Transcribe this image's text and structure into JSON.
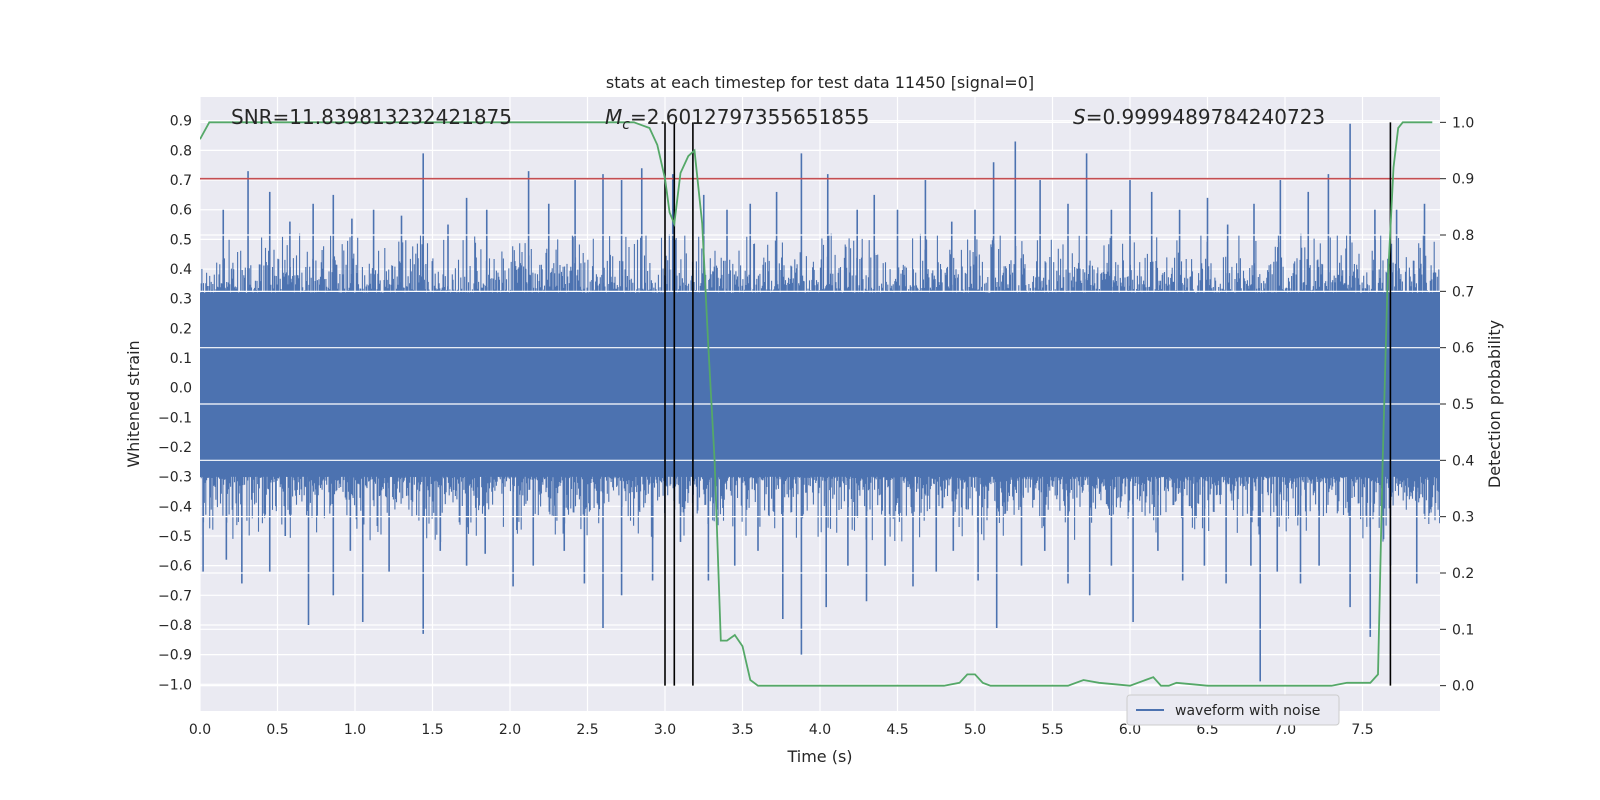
{
  "chart_data": {
    "type": "line",
    "title": "stats at each timestep for test data 11450 [signal=0]",
    "xlabel": "Time (s)",
    "ylabel_left": "Whitened strain",
    "ylabel_right": "Detection probability",
    "xlim": [
      0.0,
      8.0
    ],
    "ylim_left": [
      -1.09,
      0.98
    ],
    "ylim_right": [
      -0.045,
      1.045
    ],
    "x_ticks": [
      "0.0",
      "0.5",
      "1.0",
      "1.5",
      "2.0",
      "2.5",
      "3.0",
      "3.5",
      "4.0",
      "4.5",
      "5.0",
      "5.5",
      "6.0",
      "6.5",
      "7.0",
      "7.5"
    ],
    "y_left_ticks": [
      "0.9",
      "0.8",
      "0.7",
      "0.6",
      "0.5",
      "0.4",
      "0.3",
      "0.2",
      "0.1",
      "0.0",
      "−0.1",
      "−0.2",
      "−0.3",
      "−0.4",
      "−0.5",
      "−0.6",
      "−0.7",
      "−0.8",
      "−0.9",
      "−1.0"
    ],
    "y_right_ticks": [
      "1.0",
      "0.9",
      "0.8",
      "0.7",
      "0.6",
      "0.5",
      "0.4",
      "0.3",
      "0.2",
      "0.1",
      "0.0"
    ],
    "grid": true,
    "legend": {
      "position": "lower-right",
      "entries": [
        {
          "label": "waveform with noise",
          "color": "#4c72b0"
        }
      ]
    },
    "annotations": {
      "snr": "SNR=11.839813232421875",
      "mc_symbol": "M",
      "mc_sub": "c",
      "mc_value": "=2.6012797355651855",
      "s_symbol": "S",
      "s_value": "=0.9999489784240723"
    },
    "threshold": {
      "axis": "right",
      "value": 0.9,
      "color": "#c44e52"
    },
    "vertical_lines": [
      3.0,
      3.06,
      3.18,
      7.68
    ],
    "waveform": {
      "color": "#4c72b0",
      "body_envelope": [
        -0.3,
        0.32
      ],
      "peaks_up": [
        [
          0.15,
          0.6
        ],
        [
          0.31,
          0.73
        ],
        [
          0.45,
          0.66
        ],
        [
          0.58,
          0.56
        ],
        [
          0.73,
          0.62
        ],
        [
          0.86,
          0.65
        ],
        [
          0.98,
          0.57
        ],
        [
          1.12,
          0.6
        ],
        [
          1.3,
          0.58
        ],
        [
          1.44,
          0.79
        ],
        [
          1.6,
          0.55
        ],
        [
          1.72,
          0.64
        ],
        [
          1.85,
          0.6
        ],
        [
          2.12,
          0.73
        ],
        [
          2.25,
          0.62
        ],
        [
          2.42,
          0.7
        ],
        [
          2.6,
          0.72
        ],
        [
          2.72,
          0.7
        ],
        [
          2.85,
          0.74
        ],
        [
          3.05,
          0.72
        ],
        [
          3.25,
          0.65
        ],
        [
          3.4,
          0.6
        ],
        [
          3.55,
          0.62
        ],
        [
          3.72,
          0.66
        ],
        [
          3.88,
          0.79
        ],
        [
          4.05,
          0.72
        ],
        [
          4.24,
          0.6
        ],
        [
          4.35,
          0.65
        ],
        [
          4.5,
          0.6
        ],
        [
          4.68,
          0.7
        ],
        [
          4.85,
          0.56
        ],
        [
          5.0,
          0.6
        ],
        [
          5.12,
          0.76
        ],
        [
          5.26,
          0.83
        ],
        [
          5.42,
          0.7
        ],
        [
          5.6,
          0.62
        ],
        [
          5.72,
          0.79
        ],
        [
          5.88,
          0.6
        ],
        [
          6.0,
          0.7
        ],
        [
          6.14,
          0.66
        ],
        [
          6.32,
          0.6
        ],
        [
          6.5,
          0.64
        ],
        [
          6.63,
          0.55
        ],
        [
          6.8,
          0.62
        ],
        [
          6.97,
          0.7
        ],
        [
          7.15,
          0.66
        ],
        [
          7.28,
          0.72
        ],
        [
          7.42,
          0.89
        ],
        [
          7.58,
          0.6
        ],
        [
          7.72,
          0.6
        ],
        [
          7.9,
          0.62
        ]
      ],
      "peaks_down": [
        [
          0.02,
          -0.62
        ],
        [
          0.17,
          -0.58
        ],
        [
          0.27,
          -0.66
        ],
        [
          0.45,
          -0.62
        ],
        [
          0.55,
          -0.5
        ],
        [
          0.7,
          -0.8
        ],
        [
          0.86,
          -0.7
        ],
        [
          0.97,
          -0.55
        ],
        [
          1.05,
          -0.79
        ],
        [
          1.22,
          -0.62
        ],
        [
          1.44,
          -0.83
        ],
        [
          1.55,
          -0.55
        ],
        [
          1.72,
          -0.6
        ],
        [
          1.84,
          -0.56
        ],
        [
          2.02,
          -0.67
        ],
        [
          2.15,
          -0.6
        ],
        [
          2.35,
          -0.55
        ],
        [
          2.48,
          -0.66
        ],
        [
          2.6,
          -0.81
        ],
        [
          2.72,
          -0.7
        ],
        [
          2.92,
          -0.65
        ],
        [
          3.1,
          -0.52
        ],
        [
          3.28,
          -0.65
        ],
        [
          3.45,
          -0.6
        ],
        [
          3.6,
          -0.55
        ],
        [
          3.76,
          -0.78
        ],
        [
          3.88,
          -0.9
        ],
        [
          4.04,
          -0.74
        ],
        [
          4.18,
          -0.6
        ],
        [
          4.3,
          -0.72
        ],
        [
          4.42,
          -0.6
        ],
        [
          4.6,
          -0.67
        ],
        [
          4.75,
          -0.62
        ],
        [
          4.86,
          -0.55
        ],
        [
          5.02,
          -0.65
        ],
        [
          5.14,
          -0.81
        ],
        [
          5.3,
          -0.6
        ],
        [
          5.45,
          -0.55
        ],
        [
          5.6,
          -0.66
        ],
        [
          5.74,
          -0.7
        ],
        [
          5.88,
          -0.6
        ],
        [
          6.02,
          -0.79
        ],
        [
          6.18,
          -0.55
        ],
        [
          6.34,
          -0.65
        ],
        [
          6.48,
          -0.6
        ],
        [
          6.62,
          -0.66
        ],
        [
          6.78,
          -0.6
        ],
        [
          6.84,
          -0.99
        ],
        [
          6.95,
          -0.62
        ],
        [
          7.1,
          -0.66
        ],
        [
          7.22,
          -0.6
        ],
        [
          7.42,
          -0.74
        ],
        [
          7.55,
          -0.84
        ],
        [
          7.68,
          -0.6
        ],
        [
          7.85,
          -0.66
        ]
      ]
    },
    "series": [
      {
        "color": "#55a868",
        "axis": "right",
        "x": [
          0.0,
          0.06,
          0.2,
          0.5,
          1.0,
          1.5,
          2.0,
          2.5,
          2.7,
          2.8,
          2.85,
          2.9,
          2.95,
          3.0,
          3.03,
          3.06,
          3.1,
          3.15,
          3.19,
          3.24,
          3.28,
          3.32,
          3.36,
          3.4,
          3.45,
          3.5,
          3.55,
          3.6,
          3.7,
          3.8,
          4.0,
          4.2,
          4.5,
          4.7,
          4.8,
          4.9,
          4.95,
          5.0,
          5.05,
          5.1,
          5.3,
          5.5,
          5.6,
          5.7,
          5.8,
          6.0,
          6.1,
          6.15,
          6.2,
          6.25,
          6.3,
          6.5,
          6.8,
          7.0,
          7.2,
          7.3,
          7.4,
          7.5,
          7.55,
          7.6,
          7.63,
          7.66,
          7.7,
          7.73,
          7.76,
          7.8,
          7.85,
          7.95
        ],
        "y": [
          0.97,
          1.0,
          1.0,
          1.0,
          1.0,
          1.0,
          1.0,
          1.0,
          1.0,
          1.0,
          0.995,
          0.99,
          0.96,
          0.9,
          0.84,
          0.82,
          0.91,
          0.94,
          0.95,
          0.82,
          0.6,
          0.4,
          0.08,
          0.08,
          0.09,
          0.07,
          0.01,
          0.0,
          0.0,
          0.0,
          0.0,
          0.0,
          0.0,
          0.0,
          0.0,
          0.005,
          0.02,
          0.02,
          0.005,
          0.0,
          0.0,
          0.0,
          0.0,
          0.01,
          0.005,
          0.0,
          0.01,
          0.015,
          0.0,
          0.0,
          0.005,
          0.0,
          0.0,
          0.0,
          0.0,
          0.0,
          0.005,
          0.005,
          0.005,
          0.02,
          0.4,
          0.7,
          0.92,
          0.99,
          1.0,
          1.0,
          1.0,
          1.0
        ]
      }
    ]
  }
}
